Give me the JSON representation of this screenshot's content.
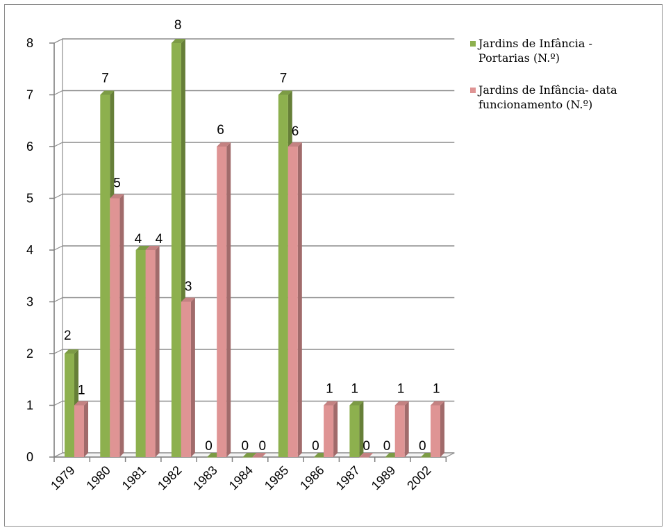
{
  "chart_data": {
    "type": "bar",
    "categories": [
      "1979",
      "1980",
      "1981",
      "1982",
      "1983",
      "1984",
      "1985",
      "1986",
      "1987",
      "1989",
      "2002"
    ],
    "series": [
      {
        "name": "Jardins de Infância - Portarias (N.º)",
        "legend_lines": [
          "Jardins de Infância -",
          "Portarias (N.º)"
        ],
        "color": "#8db04e",
        "values": [
          2,
          7,
          4,
          8,
          0,
          0,
          7,
          0,
          1,
          0,
          0
        ]
      },
      {
        "name": "Jardins de Infância- data funcionamento (N.º)",
        "legend_lines": [
          "Jardins de Infância- data",
          "funcionamento (N.º)"
        ],
        "color": "#df9494",
        "values": [
          1,
          5,
          4,
          3,
          6,
          0,
          6,
          1,
          0,
          1,
          1
        ]
      }
    ],
    "ylim": [
      0,
      8
    ],
    "yticks": [
      "0",
      "1",
      "2",
      "3",
      "4",
      "5",
      "6",
      "7",
      "8"
    ],
    "grid": true,
    "legend": "right",
    "title": "",
    "xlabel": "",
    "ylabel": ""
  }
}
